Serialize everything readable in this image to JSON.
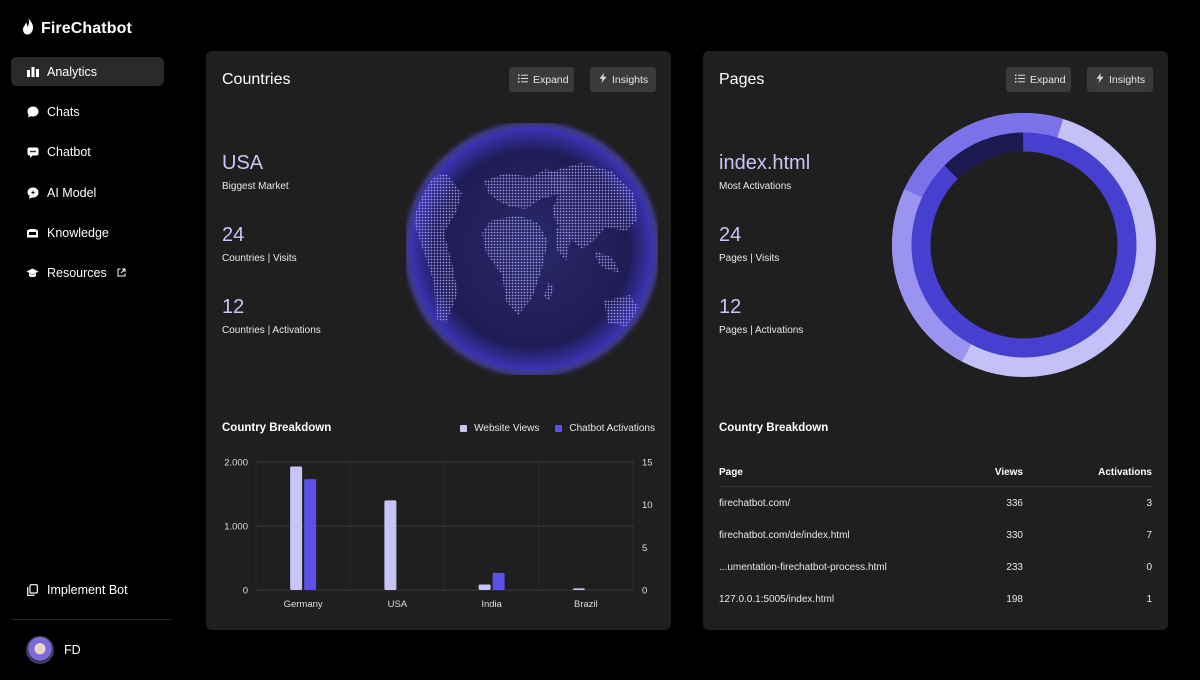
{
  "app": {
    "name": "FireChatbot"
  },
  "sidebar": {
    "items": [
      {
        "label": "Analytics",
        "icon": "bar-chart-icon",
        "active": true
      },
      {
        "label": "Chats",
        "icon": "chat-bubble-icon"
      },
      {
        "label": "Chatbot",
        "icon": "chatbot-icon"
      },
      {
        "label": "AI Model",
        "icon": "ai-model-icon"
      },
      {
        "label": "Knowledge",
        "icon": "knowledge-icon"
      },
      {
        "label": "Resources",
        "icon": "graduation-cap-icon",
        "external": true
      }
    ],
    "implement_label": "Implement Bot",
    "user": {
      "initials": "FD"
    }
  },
  "countries": {
    "title": "Countries",
    "expand_label": "Expand",
    "insights_label": "Insights",
    "stats": [
      {
        "value": "USA",
        "label": "Biggest Market"
      },
      {
        "value": "24",
        "label": "Countries | Visits"
      },
      {
        "value": "12",
        "label": "Countries | Activations"
      }
    ],
    "breakdown_title": "Country Breakdown"
  },
  "pages": {
    "title": "Pages",
    "expand_label": "Expand",
    "insights_label": "Insights",
    "stats": [
      {
        "value": "index.html",
        "label": "Most Activations"
      },
      {
        "value": "24",
        "label": "Pages | Visits"
      },
      {
        "value": "12",
        "label": "Pages | Activations"
      }
    ],
    "breakdown_title": "Country Breakdown",
    "table": {
      "headers": {
        "page": "Page",
        "views": "Views",
        "activations": "Activations"
      },
      "rows": [
        {
          "page": "firechatbot.com/",
          "views": "336",
          "activations": "3"
        },
        {
          "page": "firechatbot.com/de/index.html",
          "views": "330",
          "activations": "7"
        },
        {
          "page": "...umentation-firechatbot-process.html",
          "views": "233",
          "activations": "0"
        },
        {
          "page": "127.0.0.1:5005/index.html",
          "views": "198",
          "activations": "1"
        }
      ]
    },
    "donut": {
      "outer_colors": [
        "#c4c0f8",
        "#9a93f0",
        "#7b72ea"
      ],
      "inner_color": "#463fcf",
      "inner_dark": "#1b1950"
    }
  },
  "chart_data": [
    {
      "type": "bar",
      "title": "Country Breakdown",
      "categories": [
        "Germany",
        "USA",
        "India",
        "Brazil"
      ],
      "series": [
        {
          "name": "Website Views",
          "axis": "left",
          "color": "#c8c4f7",
          "values": [
            1930,
            1400,
            85,
            25
          ]
        },
        {
          "name": "Chatbot Activations",
          "axis": "right",
          "color": "#5b50e8",
          "values": [
            13,
            0,
            2,
            0
          ]
        }
      ],
      "y_left": {
        "ticks": [
          "0",
          "1.000",
          "2.000"
        ],
        "range": [
          0,
          2000
        ]
      },
      "y_right": {
        "ticks": [
          "0",
          "5",
          "10",
          "15"
        ],
        "range": [
          0,
          15
        ]
      },
      "legend": "top-right",
      "grid": true
    }
  ]
}
